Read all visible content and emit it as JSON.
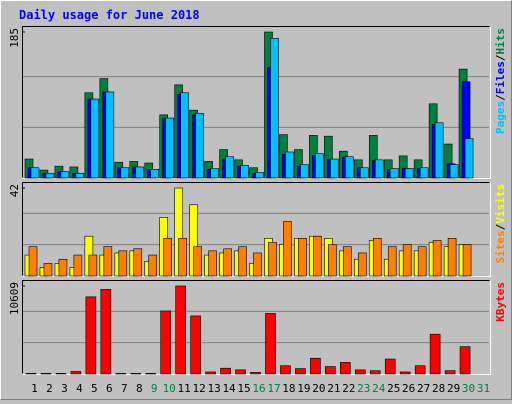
{
  "chart_data": [
    {
      "type": "bar",
      "title": "Daily usage for June 2018",
      "categories": [
        "1",
        "2",
        "3",
        "4",
        "5",
        "6",
        "7",
        "8",
        "9",
        "10",
        "11",
        "12",
        "13",
        "14",
        "15",
        "16",
        "17",
        "18",
        "19",
        "20",
        "21",
        "22",
        "23",
        "24",
        "25",
        "26",
        "27",
        "28",
        "29",
        "30",
        "31"
      ],
      "category_colors": [
        "#000000",
        "#000000",
        "#000000",
        "#000000",
        "#000000",
        "#000000",
        "#000000",
        "#000000",
        "#008040",
        "#008040",
        "#000000",
        "#000000",
        "#000000",
        "#000000",
        "#000000",
        "#008040",
        "#008040",
        "#000000",
        "#000000",
        "#000000",
        "#000000",
        "#000000",
        "#008040",
        "#008040",
        "#000000",
        "#000000",
        "#000000",
        "#000000",
        "#000000",
        "#008040",
        "#008040"
      ],
      "legend_separator": "/",
      "series": [
        {
          "name": "Hits",
          "color": "#008040",
          "values": [
            24,
            10,
            15,
            14,
            108,
            126,
            20,
            21,
            19,
            80,
            118,
            86,
            21,
            36,
            23,
            13,
            185,
            55,
            36,
            54,
            53,
            34,
            23,
            54,
            23,
            28,
            23,
            94,
            43,
            138,
            0
          ]
        },
        {
          "name": "Files",
          "color": "#0000ff",
          "values": [
            13,
            6,
            8,
            6,
            100,
            109,
            13,
            14,
            11,
            75,
            106,
            80,
            11,
            24,
            15,
            6,
            140,
            30,
            15,
            28,
            23,
            26,
            13,
            22,
            11,
            12,
            12,
            68,
            18,
            122,
            0
          ]
        },
        {
          "name": "Pages",
          "color": "#00c0ff",
          "values": [
            13,
            6,
            8,
            6,
            100,
            109,
            13,
            14,
            11,
            76,
            108,
            82,
            12,
            27,
            16,
            7,
            177,
            33,
            17,
            31,
            24,
            27,
            13,
            23,
            12,
            12,
            13,
            70,
            17,
            50,
            0
          ]
        }
      ],
      "ylim": [
        0,
        185
      ],
      "yticks": [
        185
      ]
    },
    {
      "type": "bar",
      "series": [
        {
          "name": "Visits",
          "color": "#ffff00",
          "values": [
            10,
            4,
            6,
            4,
            19,
            10,
            11,
            12,
            7,
            28,
            42,
            34,
            10,
            11,
            12,
            6,
            18,
            15,
            18,
            19,
            18,
            12,
            8,
            17,
            8,
            12,
            12,
            16,
            14,
            15,
            0
          ]
        },
        {
          "name": "Sites",
          "color": "#ff8000",
          "values": [
            14,
            6,
            8,
            10,
            10,
            14,
            12,
            13,
            10,
            18,
            18,
            14,
            12,
            13,
            14,
            11,
            16,
            26,
            18,
            19,
            15,
            14,
            11,
            18,
            14,
            15,
            14,
            17,
            18,
            15,
            0
          ]
        }
      ],
      "ylim": [
        0,
        42
      ],
      "yticks": [
        42
      ]
    },
    {
      "type": "bar",
      "series": [
        {
          "name": "KBytes",
          "color": "#ff0000",
          "values": [
            80,
            80,
            80,
            300,
            9300,
            10200,
            80,
            80,
            80,
            7600,
            10609,
            7000,
            250,
            700,
            500,
            200,
            7300,
            1000,
            650,
            1900,
            900,
            1400,
            500,
            400,
            1800,
            250,
            1000,
            4800,
            400,
            3300,
            0
          ]
        }
      ],
      "ylim": [
        0,
        10609
      ],
      "yticks": [
        10609
      ]
    }
  ]
}
